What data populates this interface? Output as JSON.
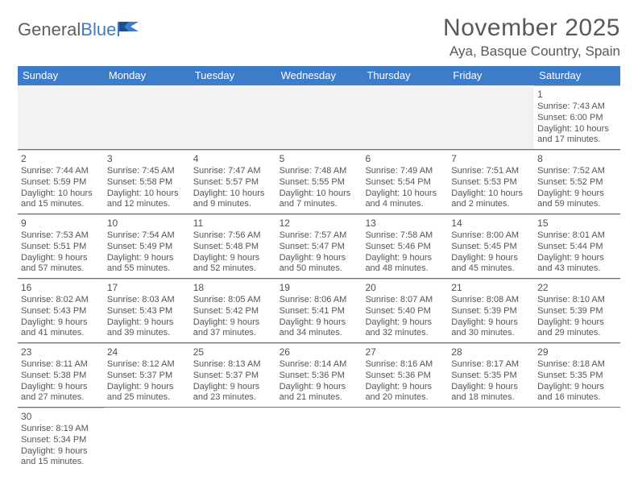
{
  "logo": {
    "part1": "General",
    "part2": "Blue"
  },
  "title": {
    "month": "November 2025",
    "location": "Aya, Basque Country, Spain"
  },
  "style": {
    "header_bg": "#3d7cc9",
    "header_fg": "#ffffff",
    "text_color": "#555555",
    "daynum_color": "#505050",
    "row_border": "#3d7cc9",
    "empty_bg": "#f2f2f2",
    "font_family": "Arial",
    "body_fontsize": 11,
    "head_fontsize": 13,
    "month_fontsize": 30,
    "location_fontsize": 17
  },
  "week_headers": [
    "Sunday",
    "Monday",
    "Tuesday",
    "Wednesday",
    "Thursday",
    "Friday",
    "Saturday"
  ],
  "weeks": [
    [
      null,
      null,
      null,
      null,
      null,
      null,
      {
        "n": "1",
        "sr": "Sunrise: 7:43 AM",
        "ss": "Sunset: 6:00 PM",
        "d1": "Daylight: 10 hours",
        "d2": "and 17 minutes."
      }
    ],
    [
      {
        "n": "2",
        "sr": "Sunrise: 7:44 AM",
        "ss": "Sunset: 5:59 PM",
        "d1": "Daylight: 10 hours",
        "d2": "and 15 minutes."
      },
      {
        "n": "3",
        "sr": "Sunrise: 7:45 AM",
        "ss": "Sunset: 5:58 PM",
        "d1": "Daylight: 10 hours",
        "d2": "and 12 minutes."
      },
      {
        "n": "4",
        "sr": "Sunrise: 7:47 AM",
        "ss": "Sunset: 5:57 PM",
        "d1": "Daylight: 10 hours",
        "d2": "and 9 minutes."
      },
      {
        "n": "5",
        "sr": "Sunrise: 7:48 AM",
        "ss": "Sunset: 5:55 PM",
        "d1": "Daylight: 10 hours",
        "d2": "and 7 minutes."
      },
      {
        "n": "6",
        "sr": "Sunrise: 7:49 AM",
        "ss": "Sunset: 5:54 PM",
        "d1": "Daylight: 10 hours",
        "d2": "and 4 minutes."
      },
      {
        "n": "7",
        "sr": "Sunrise: 7:51 AM",
        "ss": "Sunset: 5:53 PM",
        "d1": "Daylight: 10 hours",
        "d2": "and 2 minutes."
      },
      {
        "n": "8",
        "sr": "Sunrise: 7:52 AM",
        "ss": "Sunset: 5:52 PM",
        "d1": "Daylight: 9 hours",
        "d2": "and 59 minutes."
      }
    ],
    [
      {
        "n": "9",
        "sr": "Sunrise: 7:53 AM",
        "ss": "Sunset: 5:51 PM",
        "d1": "Daylight: 9 hours",
        "d2": "and 57 minutes."
      },
      {
        "n": "10",
        "sr": "Sunrise: 7:54 AM",
        "ss": "Sunset: 5:49 PM",
        "d1": "Daylight: 9 hours",
        "d2": "and 55 minutes."
      },
      {
        "n": "11",
        "sr": "Sunrise: 7:56 AM",
        "ss": "Sunset: 5:48 PM",
        "d1": "Daylight: 9 hours",
        "d2": "and 52 minutes."
      },
      {
        "n": "12",
        "sr": "Sunrise: 7:57 AM",
        "ss": "Sunset: 5:47 PM",
        "d1": "Daylight: 9 hours",
        "d2": "and 50 minutes."
      },
      {
        "n": "13",
        "sr": "Sunrise: 7:58 AM",
        "ss": "Sunset: 5:46 PM",
        "d1": "Daylight: 9 hours",
        "d2": "and 48 minutes."
      },
      {
        "n": "14",
        "sr": "Sunrise: 8:00 AM",
        "ss": "Sunset: 5:45 PM",
        "d1": "Daylight: 9 hours",
        "d2": "and 45 minutes."
      },
      {
        "n": "15",
        "sr": "Sunrise: 8:01 AM",
        "ss": "Sunset: 5:44 PM",
        "d1": "Daylight: 9 hours",
        "d2": "and 43 minutes."
      }
    ],
    [
      {
        "n": "16",
        "sr": "Sunrise: 8:02 AM",
        "ss": "Sunset: 5:43 PM",
        "d1": "Daylight: 9 hours",
        "d2": "and 41 minutes."
      },
      {
        "n": "17",
        "sr": "Sunrise: 8:03 AM",
        "ss": "Sunset: 5:43 PM",
        "d1": "Daylight: 9 hours",
        "d2": "and 39 minutes."
      },
      {
        "n": "18",
        "sr": "Sunrise: 8:05 AM",
        "ss": "Sunset: 5:42 PM",
        "d1": "Daylight: 9 hours",
        "d2": "and 37 minutes."
      },
      {
        "n": "19",
        "sr": "Sunrise: 8:06 AM",
        "ss": "Sunset: 5:41 PM",
        "d1": "Daylight: 9 hours",
        "d2": "and 34 minutes."
      },
      {
        "n": "20",
        "sr": "Sunrise: 8:07 AM",
        "ss": "Sunset: 5:40 PM",
        "d1": "Daylight: 9 hours",
        "d2": "and 32 minutes."
      },
      {
        "n": "21",
        "sr": "Sunrise: 8:08 AM",
        "ss": "Sunset: 5:39 PM",
        "d1": "Daylight: 9 hours",
        "d2": "and 30 minutes."
      },
      {
        "n": "22",
        "sr": "Sunrise: 8:10 AM",
        "ss": "Sunset: 5:39 PM",
        "d1": "Daylight: 9 hours",
        "d2": "and 29 minutes."
      }
    ],
    [
      {
        "n": "23",
        "sr": "Sunrise: 8:11 AM",
        "ss": "Sunset: 5:38 PM",
        "d1": "Daylight: 9 hours",
        "d2": "and 27 minutes."
      },
      {
        "n": "24",
        "sr": "Sunrise: 8:12 AM",
        "ss": "Sunset: 5:37 PM",
        "d1": "Daylight: 9 hours",
        "d2": "and 25 minutes."
      },
      {
        "n": "25",
        "sr": "Sunrise: 8:13 AM",
        "ss": "Sunset: 5:37 PM",
        "d1": "Daylight: 9 hours",
        "d2": "and 23 minutes."
      },
      {
        "n": "26",
        "sr": "Sunrise: 8:14 AM",
        "ss": "Sunset: 5:36 PM",
        "d1": "Daylight: 9 hours",
        "d2": "and 21 minutes."
      },
      {
        "n": "27",
        "sr": "Sunrise: 8:16 AM",
        "ss": "Sunset: 5:36 PM",
        "d1": "Daylight: 9 hours",
        "d2": "and 20 minutes."
      },
      {
        "n": "28",
        "sr": "Sunrise: 8:17 AM",
        "ss": "Sunset: 5:35 PM",
        "d1": "Daylight: 9 hours",
        "d2": "and 18 minutes."
      },
      {
        "n": "29",
        "sr": "Sunrise: 8:18 AM",
        "ss": "Sunset: 5:35 PM",
        "d1": "Daylight: 9 hours",
        "d2": "and 16 minutes."
      }
    ],
    [
      {
        "n": "30",
        "sr": "Sunrise: 8:19 AM",
        "ss": "Sunset: 5:34 PM",
        "d1": "Daylight: 9 hours",
        "d2": "and 15 minutes."
      },
      null,
      null,
      null,
      null,
      null,
      null
    ]
  ]
}
